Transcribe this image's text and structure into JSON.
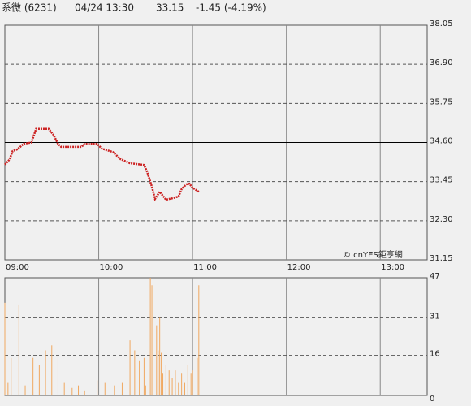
{
  "header": {
    "name": "系微 (6231)",
    "datetime": "04/24 13:30",
    "price": "33.15",
    "change": "-1.45 (-4.19%)",
    "color": "#33bb33"
  },
  "chart_data": [
    {
      "type": "line",
      "name": "price",
      "x": [
        "09:00",
        "09:03",
        "09:05",
        "09:08",
        "09:12",
        "09:17",
        "09:20",
        "09:28",
        "09:31",
        "09:34",
        "09:36",
        "09:49",
        "09:51",
        "09:59",
        "10:02",
        "10:09",
        "10:14",
        "10:20",
        "10:29",
        "10:31",
        "10:34",
        "10:36",
        "10:39",
        "10:43",
        "10:47",
        "10:51",
        "10:53",
        "10:56",
        "10:58",
        "11:00",
        "11:04"
      ],
      "series": [
        {
          "name": "price",
          "color": "#cc2222",
          "values": [
            33.95,
            34.1,
            34.35,
            34.4,
            34.56,
            34.6,
            35.0,
            35.0,
            34.83,
            34.56,
            34.47,
            34.47,
            34.56,
            34.56,
            34.42,
            34.32,
            34.11,
            33.99,
            33.94,
            33.73,
            33.3,
            32.94,
            33.15,
            32.92,
            32.96,
            33.01,
            33.23,
            33.37,
            33.39,
            33.27,
            33.15
          ]
        }
      ],
      "reference": 34.6,
      "xlim": [
        "09:00",
        "13:30"
      ],
      "xticks": [
        "09:00",
        "10:00",
        "11:00",
        "12:00",
        "13:00"
      ],
      "ylim": [
        31.15,
        38.05
      ],
      "yticks": [
        {
          "value": 31.15,
          "label": "31.15"
        },
        {
          "value": 32.3,
          "label": "32.30"
        },
        {
          "value": 33.45,
          "label": "33.45"
        },
        {
          "value": 34.6,
          "label": "34.60"
        },
        {
          "value": 35.75,
          "label": "35.75"
        },
        {
          "value": 36.9,
          "label": "36.90"
        },
        {
          "value": 38.05,
          "label": "38.05"
        }
      ],
      "grid": true,
      "annotation": "© cnYES鉅亨網"
    },
    {
      "type": "bar",
      "name": "volume",
      "color": "#f0a860",
      "x": [
        "09:00",
        "09:02",
        "09:04",
        "09:09",
        "09:13",
        "09:18",
        "09:22",
        "09:26",
        "09:30",
        "09:34",
        "09:38",
        "09:43",
        "09:47",
        "09:51",
        "09:59",
        "10:04",
        "10:10",
        "10:15",
        "10:20",
        "10:23",
        "10:26",
        "10:29",
        "10:30",
        "10:33",
        "10:34",
        "10:37",
        "10:38",
        "10:39",
        "10:40",
        "10:41",
        "10:43",
        "10:45",
        "10:47",
        "10:49",
        "10:51",
        "10:53",
        "10:55",
        "10:57",
        "10:59",
        "11:00",
        "11:03",
        "11:04"
      ],
      "values": [
        37,
        5,
        15,
        36,
        4,
        15,
        12,
        18,
        20,
        16,
        5,
        3,
        4,
        2,
        6,
        5,
        4,
        5,
        22,
        18,
        14,
        15,
        4,
        47,
        44,
        28,
        18,
        31,
        17,
        9,
        12,
        10,
        7,
        10,
        5,
        9,
        5,
        12,
        9,
        10,
        15,
        44
      ],
      "xlim": [
        "09:00",
        "13:30"
      ],
      "xticks": [
        "09:00",
        "10:00",
        "11:00",
        "12:00",
        "13:00"
      ],
      "ylim": [
        0,
        47
      ],
      "yticks": [
        0,
        16,
        31,
        47
      ],
      "grid": true
    }
  ]
}
